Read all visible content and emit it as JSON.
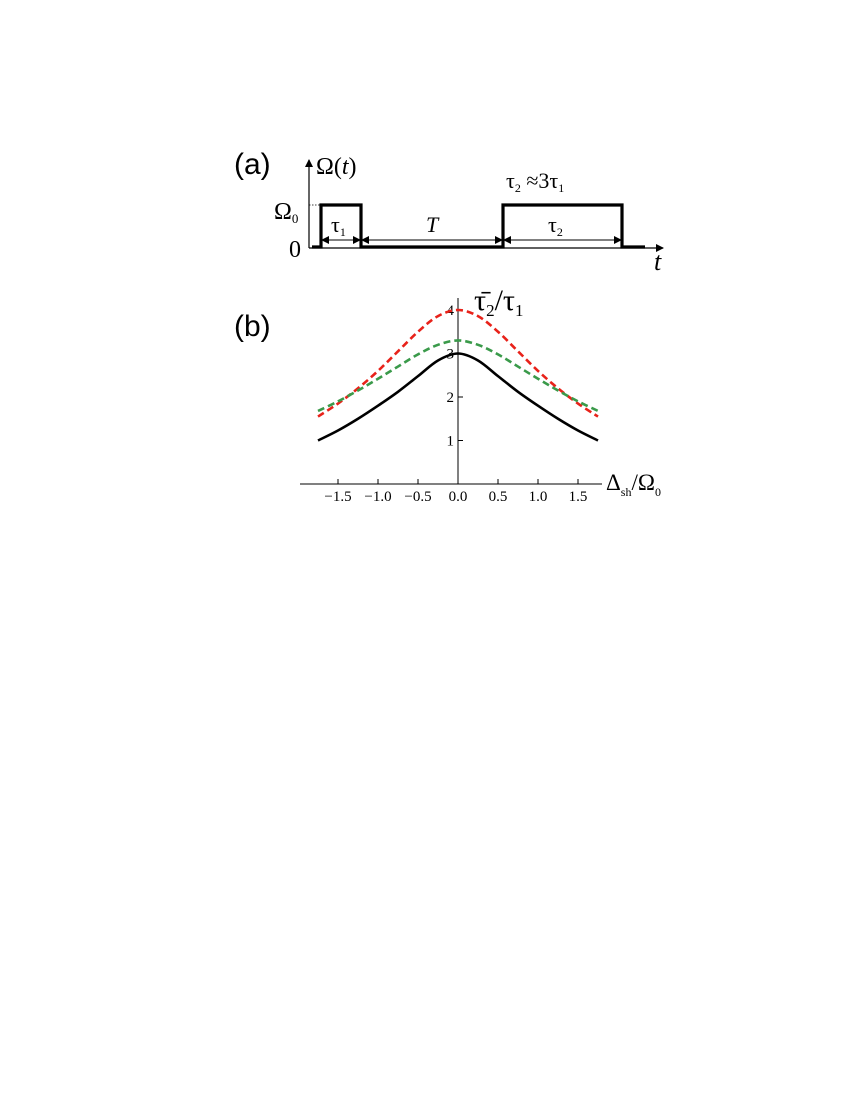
{
  "panel_a": {
    "label": "(a)",
    "y_axis_label": "Ω(t)",
    "x_axis_label": "t",
    "level_top_label": "Ω",
    "level_top_sub": "0",
    "level_zero_label": "0",
    "interval_1_label": "τ",
    "interval_1_sub": "1",
    "gap_label": "T",
    "interval_2_label": "τ",
    "interval_2_sub": "2",
    "relation_label": "τ",
    "relation_sub_1": "2",
    "relation_mid": " ≈3τ",
    "relation_sub_2": "1"
  },
  "panel_b": {
    "label": "(b)"
  },
  "chart_data": {
    "type": "line",
    "ylabel": "τ̄₂ / τ₁",
    "ylabel_main": "τ̄",
    "ylabel_sub": "2",
    "ylabel_rest": "/τ",
    "ylabel_sub2": "1",
    "xlabel_main": "Δ",
    "xlabel_sub": "sh",
    "xlabel_rest": "/Ω",
    "xlabel_sub2": "0",
    "xlim": [
      -1.75,
      1.75
    ],
    "ylim": [
      0,
      4
    ],
    "x_ticks": [
      "-1.5",
      "-1.0",
      "-0.5",
      "0.0",
      "0.5",
      "1.0",
      "1.5"
    ],
    "x_tick_values": [
      -1.5,
      -1.0,
      -0.5,
      0.0,
      0.5,
      1.0,
      1.5
    ],
    "y_ticks": [
      "1",
      "2",
      "3",
      "4"
    ],
    "y_tick_values": [
      1,
      2,
      3,
      4
    ],
    "series": [
      {
        "color": "#000000",
        "style": "solid",
        "x": [
          -1.75,
          -1.5,
          -1.25,
          -1.0,
          -0.75,
          -0.5,
          -0.25,
          0.0,
          0.25,
          0.5,
          0.75,
          1.0,
          1.25,
          1.5,
          1.75
        ],
        "y": [
          1.0,
          1.23,
          1.5,
          1.8,
          2.12,
          2.48,
          2.84,
          3.0,
          2.84,
          2.48,
          2.12,
          1.8,
          1.5,
          1.23,
          1.0
        ]
      },
      {
        "color": "#e8221a",
        "style": "dashed",
        "x": [
          -1.75,
          -1.5,
          -1.25,
          -1.0,
          -0.75,
          -0.5,
          -0.25,
          0.0,
          0.25,
          0.5,
          0.75,
          1.0,
          1.25,
          1.5,
          1.75
        ],
        "y": [
          1.55,
          1.85,
          2.2,
          2.6,
          3.05,
          3.5,
          3.86,
          4.0,
          3.86,
          3.5,
          3.05,
          2.6,
          2.2,
          1.85,
          1.55
        ]
      },
      {
        "color": "#3a9a4a",
        "style": "dashed",
        "x": [
          -1.75,
          -1.5,
          -1.25,
          -1.0,
          -0.75,
          -0.5,
          -0.25,
          0.0,
          0.25,
          0.5,
          0.75,
          1.0,
          1.25,
          1.5,
          1.75
        ],
        "y": [
          1.68,
          1.9,
          2.15,
          2.42,
          2.7,
          2.98,
          3.2,
          3.3,
          3.2,
          2.98,
          2.7,
          2.42,
          2.15,
          1.9,
          1.68
        ]
      }
    ]
  }
}
